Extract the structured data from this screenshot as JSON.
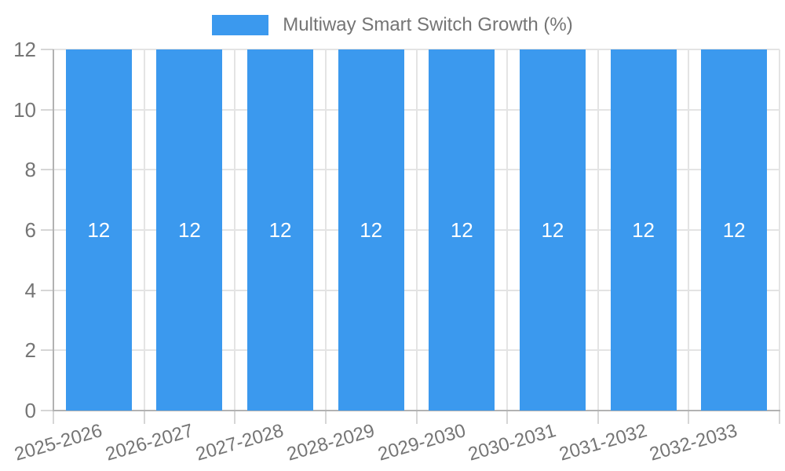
{
  "chart_data": {
    "type": "bar",
    "title": "Multiway Smart Switch Growth (%)",
    "categories": [
      "2025-2026",
      "2026-2027",
      "2027-2028",
      "2028-2029",
      "2029-2030",
      "2030-2031",
      "2031-2032",
      "2032-2033"
    ],
    "values": [
      12,
      12,
      12,
      12,
      12,
      12,
      12,
      12
    ],
    "series": [
      {
        "name": "Multiway Smart Switch Growth (%)",
        "values": [
          12,
          12,
          12,
          12,
          12,
          12,
          12,
          12
        ]
      }
    ],
    "bar_value_labels": [
      "12",
      "12",
      "12",
      "12",
      "12",
      "12",
      "12",
      "12"
    ],
    "xlabel": "",
    "ylabel": "",
    "ylim": [
      0,
      12
    ],
    "yticks": [
      0,
      2,
      4,
      6,
      8,
      10,
      12
    ],
    "grid": true,
    "legend_position": "top-center"
  },
  "style": {
    "bar_color": "#3B99EE",
    "bar_label_color": "#FFFFFF",
    "axis_text_color": "#757575",
    "legend_text_color": "#757575",
    "grid_color": "#E4E4E4",
    "tick_color": "#D6D6D6",
    "axis_line_color": "#B2B2B2",
    "background_color": "#FFFFFF"
  }
}
